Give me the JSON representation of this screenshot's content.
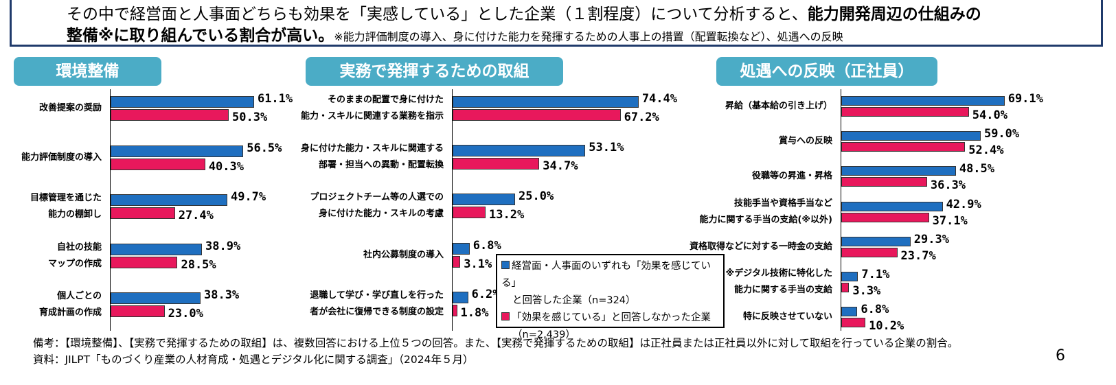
{
  "header": {
    "line1_normal": "その中で経営面と人事面どちらも効果を「実感している」とした企業（１割程度）について分析すると、",
    "line1_bold": "能力開発周辺の仕組みの",
    "line2_bold": "整備※に取り組んでいる割合が高い。",
    "line2_note": "※能力評価制度の導入、身に付けた能力を発揮するための人事上の措置（配置転換など）、処遇への反映"
  },
  "colors": {
    "series1": "#1f6fc0",
    "series2": "#e8185c",
    "tab": "#4bacc6"
  },
  "legend": {
    "s1_line1": "経営面・人事面のいずれも「効果を感じている」",
    "s1_line2": "と回答した企業（n=324）",
    "s2_line1": "「効果を感じている」と回答しなかった企業",
    "s2_line2": "（n=2,439）"
  },
  "chart_data": [
    {
      "type": "bar",
      "orientation": "horizontal",
      "title": "環境整備",
      "categories": [
        "改善提案の奨励",
        "能力評価制度の導入",
        "目標管理を通じた\n能力の棚卸し",
        "自社の技能\nマップの作成",
        "個人ごとの\n育成計画の作成"
      ],
      "series": [
        {
          "values": [
            61.1,
            56.5,
            49.7,
            38.9,
            38.3
          ]
        },
        {
          "values": [
            50.3,
            40.3,
            27.4,
            28.5,
            23.0
          ]
        }
      ],
      "unit": "%"
    },
    {
      "type": "bar",
      "orientation": "horizontal",
      "title": "実務で発揮するための取組",
      "categories": [
        "そのままの配置で身に付けた\n能力・スキルに関連する業務を指示",
        "身に付けた能力・スキルに関連する\n部署・担当への異動・配置転換",
        "プロジェクトチーム等の人選での\n身に付けた能力・スキルの考慮",
        "社内公募制度の導入",
        "退職して学び・学び直しを行った\n者が会社に復帰できる制度の設定"
      ],
      "series": [
        {
          "values": [
            74.4,
            53.1,
            25.0,
            6.8,
            6.2
          ]
        },
        {
          "values": [
            67.2,
            34.7,
            13.2,
            3.1,
            1.8
          ]
        }
      ],
      "unit": "%"
    },
    {
      "type": "bar",
      "orientation": "horizontal",
      "title": "処遇への反映（正社員）",
      "categories": [
        "昇給（基本給の引き上げ）",
        "賞与への反映",
        "役職等の昇進・昇格",
        "技能手当や資格手当など\n能力に関する手当の支給(※以外)",
        "資格取得などに対する一時金の支給",
        "※デジタル技術に特化した\n能力に関する手当の支給",
        "特に反映させていない"
      ],
      "series": [
        {
          "values": [
            69.1,
            59.0,
            48.5,
            42.9,
            29.3,
            7.1,
            6.8
          ]
        },
        {
          "values": [
            54.0,
            52.4,
            36.3,
            37.1,
            23.7,
            3.3,
            10.2
          ]
        }
      ],
      "unit": "%"
    }
  ],
  "footer": {
    "note": "備考：【環境整備】、【実務で発揮するための取組】は、複数回答における上位５つの回答。また、【実務で発揮するための取組】は正社員または正社員以外に対して取組を行っている企業の割合。",
    "source": "資料：JILPT「ものづくり産業の人材育成・処遇とデジタル化に関する調査」（2024年５月）",
    "page": "6"
  }
}
